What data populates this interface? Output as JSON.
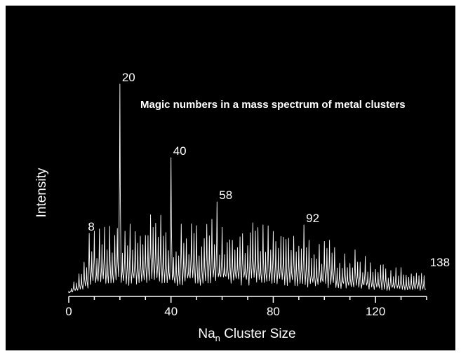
{
  "chart_data": {
    "type": "line",
    "title": "Magic numbers in a mass spectrum of metal clusters",
    "xlabel_main": "Na",
    "xlabel_sub": "n",
    "xlabel_rest": " Cluster Size",
    "ylabel": "Intensity",
    "xlim": [
      0,
      140
    ],
    "ylim": [
      0,
      1
    ],
    "xticks": [
      0,
      40,
      80,
      120
    ],
    "magic_numbers": [
      {
        "x": 8,
        "y": 0.29,
        "label": "8"
      },
      {
        "x": 20,
        "y": 1.0,
        "label": "20"
      },
      {
        "x": 40,
        "y": 0.65,
        "label": "40"
      },
      {
        "x": 58,
        "y": 0.44,
        "label": "58"
      },
      {
        "x": 92,
        "y": 0.33,
        "label": "92"
      },
      {
        "x": 138,
        "y": 0.1,
        "label": "138"
      }
    ],
    "envelope": [
      [
        0,
        0.02
      ],
      [
        5,
        0.1
      ],
      [
        10,
        0.24
      ],
      [
        15,
        0.26
      ],
      [
        20,
        0.3
      ],
      [
        25,
        0.26
      ],
      [
        30,
        0.3
      ],
      [
        35,
        0.31
      ],
      [
        40,
        0.25
      ],
      [
        45,
        0.26
      ],
      [
        50,
        0.28
      ],
      [
        55,
        0.29
      ],
      [
        60,
        0.29
      ],
      [
        70,
        0.28
      ],
      [
        80,
        0.26
      ],
      [
        90,
        0.23
      ],
      [
        100,
        0.21
      ],
      [
        110,
        0.17
      ],
      [
        120,
        0.14
      ],
      [
        130,
        0.1
      ],
      [
        140,
        0.08
      ]
    ],
    "grid": false,
    "colors": {
      "background": "#000000",
      "line": "#ffffff"
    }
  }
}
